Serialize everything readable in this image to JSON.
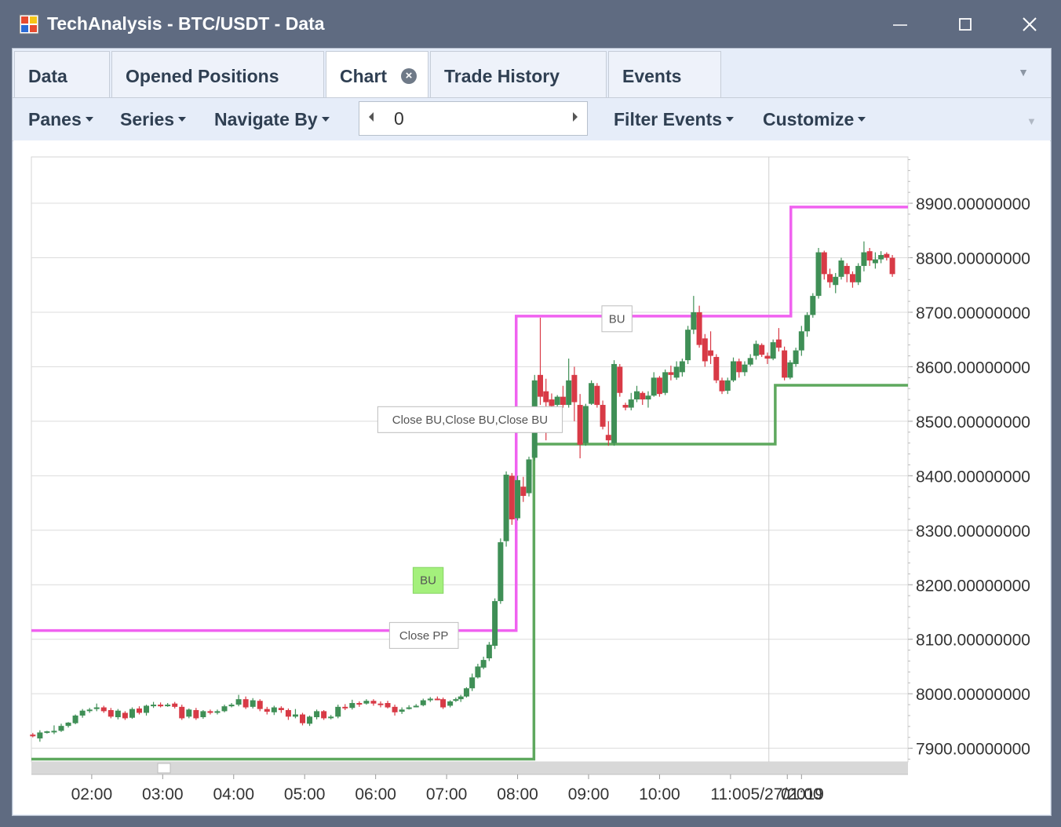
{
  "window": {
    "title": "TechAnalysis - BTC/USDT - Data",
    "controls": {
      "minimize": "—",
      "maximize": "☐",
      "close": "✕"
    }
  },
  "tabs": [
    {
      "label": "Data",
      "active": false,
      "closable": false
    },
    {
      "label": "Opened Positions",
      "active": false,
      "closable": false
    },
    {
      "label": "Chart",
      "active": true,
      "closable": true
    },
    {
      "label": "Trade History",
      "active": false,
      "closable": false
    },
    {
      "label": "Events",
      "active": false,
      "closable": false
    }
  ],
  "toolbar": {
    "panes": "Panes",
    "series": "Series",
    "navigate_by": "Navigate By",
    "navigator_value": "0",
    "filter_events": "Filter Events",
    "customize": "Customize"
  },
  "colors": {
    "up": "#3f8f56",
    "down": "#d83a46",
    "upper_band": "#f062f0",
    "lower_band": "#5ea85e",
    "annotation_green": "#a4f07c"
  },
  "chart_data": {
    "type": "candlestick",
    "y_tick_labels": [
      "8900.00000000",
      "8800.00000000",
      "8700.00000000",
      "8600.00000000",
      "8500.00000000",
      "8400.00000000",
      "8300.00000000",
      "8200.00000000",
      "8100.00000000",
      "8000.00000000",
      "7900.00000000"
    ],
    "y_ticks": [
      8900,
      8800,
      8700,
      8600,
      8500,
      8400,
      8300,
      8200,
      8100,
      8000,
      7900
    ],
    "ylim": [
      7875,
      8985
    ],
    "x_tick_labels": [
      "02:00",
      "03:00",
      "04:00",
      "05:00",
      "06:00",
      "07:00",
      "08:00",
      "09:00",
      "10:00",
      "11:00",
      "5/27/2019",
      "01:00"
    ],
    "x_ticks": [
      1.0,
      2.0,
      3.0,
      4.0,
      5.0,
      6.0,
      7.0,
      8.0,
      9.0,
      10.0,
      10.8,
      11.0
    ],
    "xlim": [
      0.15,
      12.5
    ],
    "date_divider_x": 10.54,
    "grid": true,
    "annotations": [
      {
        "text": "BU",
        "x": 8.4,
        "y": 8688,
        "style": "box"
      },
      {
        "text": "Close BU,Close BU,Close BU",
        "x": 6.33,
        "y": 8503,
        "style": "box"
      },
      {
        "text": "BU",
        "x": 5.74,
        "y": 8208,
        "style": "green"
      },
      {
        "text": "Close PP",
        "x": 5.68,
        "y": 8107,
        "style": "box"
      }
    ],
    "upper_band": {
      "x": [
        0.15,
        6.98,
        6.98,
        10.85,
        10.85,
        12.5
      ],
      "y": [
        8116,
        8116,
        8693,
        8693,
        8893,
        8893
      ]
    },
    "lower_band": {
      "x": [
        0.15,
        7.23,
        7.23,
        10.63,
        10.63,
        12.5
      ],
      "y": [
        7880,
        7880,
        8458,
        8458,
        8566,
        8566
      ]
    },
    "candles": [
      {
        "x": 0.17,
        "o": 7925,
        "h": 7928,
        "l": 7920,
        "c": 7922
      },
      {
        "x": 0.27,
        "o": 7918,
        "h": 7933,
        "l": 7912,
        "c": 7929
      },
      {
        "x": 0.37,
        "o": 7930,
        "h": 7932,
        "l": 7927,
        "c": 7931
      },
      {
        "x": 0.47,
        "o": 7931,
        "h": 7942,
        "l": 7926,
        "c": 7932
      },
      {
        "x": 0.57,
        "o": 7932,
        "h": 7945,
        "l": 7930,
        "c": 7941
      },
      {
        "x": 0.67,
        "o": 7941,
        "h": 7948,
        "l": 7938,
        "c": 7947
      },
      {
        "x": 0.77,
        "o": 7946,
        "h": 7962,
        "l": 7944,
        "c": 7960
      },
      {
        "x": 0.87,
        "o": 7960,
        "h": 7972,
        "l": 7956,
        "c": 7969
      },
      {
        "x": 0.97,
        "o": 7970,
        "h": 7974,
        "l": 7965,
        "c": 7971
      },
      {
        "x": 1.07,
        "o": 7972,
        "h": 7982,
        "l": 7968,
        "c": 7975
      },
      {
        "x": 1.17,
        "o": 7975,
        "h": 7978,
        "l": 7965,
        "c": 7968
      },
      {
        "x": 1.27,
        "o": 7970,
        "h": 7974,
        "l": 7955,
        "c": 7958
      },
      {
        "x": 1.37,
        "o": 7957,
        "h": 7972,
        "l": 7953,
        "c": 7969
      },
      {
        "x": 1.47,
        "o": 7965,
        "h": 7968,
        "l": 7952,
        "c": 7955
      },
      {
        "x": 1.57,
        "o": 7956,
        "h": 7975,
        "l": 7954,
        "c": 7972
      },
      {
        "x": 1.67,
        "o": 7973,
        "h": 7977,
        "l": 7962,
        "c": 7965
      },
      {
        "x": 1.77,
        "o": 7965,
        "h": 7980,
        "l": 7960,
        "c": 7978
      },
      {
        "x": 1.87,
        "o": 7978,
        "h": 7985,
        "l": 7974,
        "c": 7980
      },
      {
        "x": 1.97,
        "o": 7980,
        "h": 7984,
        "l": 7975,
        "c": 7977
      },
      {
        "x": 2.07,
        "o": 7979,
        "h": 7983,
        "l": 7976,
        "c": 7980
      },
      {
        "x": 2.17,
        "o": 7982,
        "h": 7985,
        "l": 7973,
        "c": 7976
      },
      {
        "x": 2.27,
        "o": 7976,
        "h": 7980,
        "l": 7952,
        "c": 7955
      },
      {
        "x": 2.37,
        "o": 7958,
        "h": 7973,
        "l": 7955,
        "c": 7971
      },
      {
        "x": 2.47,
        "o": 7970,
        "h": 7974,
        "l": 7952,
        "c": 7955
      },
      {
        "x": 2.57,
        "o": 7957,
        "h": 7970,
        "l": 7954,
        "c": 7968
      },
      {
        "x": 2.67,
        "o": 7968,
        "h": 7971,
        "l": 7962,
        "c": 7965
      },
      {
        "x": 2.77,
        "o": 7965,
        "h": 7971,
        "l": 7962,
        "c": 7968
      },
      {
        "x": 2.87,
        "o": 7968,
        "h": 7980,
        "l": 7966,
        "c": 7977
      },
      {
        "x": 2.97,
        "o": 7977,
        "h": 7983,
        "l": 7975,
        "c": 7980
      },
      {
        "x": 3.07,
        "o": 7980,
        "h": 7998,
        "l": 7977,
        "c": 7990
      },
      {
        "x": 3.17,
        "o": 7990,
        "h": 7995,
        "l": 7972,
        "c": 7975
      },
      {
        "x": 3.27,
        "o": 7976,
        "h": 7992,
        "l": 7973,
        "c": 7988
      },
      {
        "x": 3.37,
        "o": 7987,
        "h": 7990,
        "l": 7968,
        "c": 7972
      },
      {
        "x": 3.47,
        "o": 7972,
        "h": 7976,
        "l": 7962,
        "c": 7967
      },
      {
        "x": 3.57,
        "o": 7966,
        "h": 7978,
        "l": 7961,
        "c": 7975
      },
      {
        "x": 3.67,
        "o": 7974,
        "h": 7977,
        "l": 7965,
        "c": 7970
      },
      {
        "x": 3.77,
        "o": 7970,
        "h": 7973,
        "l": 7952,
        "c": 7958
      },
      {
        "x": 3.87,
        "o": 7958,
        "h": 7972,
        "l": 7955,
        "c": 7962
      },
      {
        "x": 3.97,
        "o": 7962,
        "h": 7965,
        "l": 7942,
        "c": 7946
      },
      {
        "x": 4.07,
        "o": 7945,
        "h": 7960,
        "l": 7941,
        "c": 7958
      },
      {
        "x": 4.17,
        "o": 7957,
        "h": 7971,
        "l": 7953,
        "c": 7968
      },
      {
        "x": 4.27,
        "o": 7968,
        "h": 7970,
        "l": 7952,
        "c": 7955
      },
      {
        "x": 4.37,
        "o": 7956,
        "h": 7961,
        "l": 7953,
        "c": 7958
      },
      {
        "x": 4.47,
        "o": 7958,
        "h": 7980,
        "l": 7955,
        "c": 7976
      },
      {
        "x": 4.57,
        "o": 7976,
        "h": 7981,
        "l": 7970,
        "c": 7974
      },
      {
        "x": 4.67,
        "o": 7974,
        "h": 7989,
        "l": 7971,
        "c": 7983
      },
      {
        "x": 4.77,
        "o": 7983,
        "h": 7986,
        "l": 7976,
        "c": 7981
      },
      {
        "x": 4.87,
        "o": 7982,
        "h": 7990,
        "l": 7980,
        "c": 7987
      },
      {
        "x": 4.97,
        "o": 7987,
        "h": 7990,
        "l": 7978,
        "c": 7982
      },
      {
        "x": 5.07,
        "o": 7982,
        "h": 7986,
        "l": 7975,
        "c": 7980
      },
      {
        "x": 5.17,
        "o": 7983,
        "h": 7987,
        "l": 7973,
        "c": 7975
      },
      {
        "x": 5.27,
        "o": 7976,
        "h": 7980,
        "l": 7960,
        "c": 7966
      },
      {
        "x": 5.37,
        "o": 7967,
        "h": 7975,
        "l": 7963,
        "c": 7971
      },
      {
        "x": 5.47,
        "o": 7972,
        "h": 7979,
        "l": 7971,
        "c": 7975
      },
      {
        "x": 5.57,
        "o": 7976,
        "h": 7981,
        "l": 7975,
        "c": 7978
      },
      {
        "x": 5.67,
        "o": 7979,
        "h": 7991,
        "l": 7977,
        "c": 7988
      },
      {
        "x": 5.77,
        "o": 7988,
        "h": 7994,
        "l": 7985,
        "c": 7991
      },
      {
        "x": 5.87,
        "o": 7991,
        "h": 7995,
        "l": 7988,
        "c": 7990
      },
      {
        "x": 5.95,
        "o": 7990,
        "h": 7993,
        "l": 7972,
        "c": 7975
      },
      {
        "x": 6.05,
        "o": 7978,
        "h": 7988,
        "l": 7975,
        "c": 7986
      },
      {
        "x": 6.13,
        "o": 7987,
        "h": 7993,
        "l": 7985,
        "c": 7990
      },
      {
        "x": 6.2,
        "o": 7990,
        "h": 7998,
        "l": 7985,
        "c": 7995
      },
      {
        "x": 6.28,
        "o": 7995,
        "h": 8012,
        "l": 7993,
        "c": 8010
      },
      {
        "x": 6.36,
        "o": 8010,
        "h": 8037,
        "l": 8005,
        "c": 8030
      },
      {
        "x": 6.44,
        "o": 8030,
        "h": 8055,
        "l": 8028,
        "c": 8050
      },
      {
        "x": 6.52,
        "o": 8048,
        "h": 8068,
        "l": 8045,
        "c": 8062
      },
      {
        "x": 6.6,
        "o": 8065,
        "h": 8095,
        "l": 8060,
        "c": 8090
      },
      {
        "x": 6.68,
        "o": 8088,
        "h": 8175,
        "l": 8082,
        "c": 8170
      },
      {
        "x": 6.76,
        "o": 8170,
        "h": 8285,
        "l": 8165,
        "c": 8278
      },
      {
        "x": 6.84,
        "o": 8280,
        "h": 8408,
        "l": 8270,
        "c": 8402
      },
      {
        "x": 6.92,
        "o": 8400,
        "h": 8405,
        "l": 8310,
        "c": 8320
      },
      {
        "x": 7.0,
        "o": 8322,
        "h": 8400,
        "l": 8318,
        "c": 8392
      },
      {
        "x": 7.08,
        "o": 8380,
        "h": 8398,
        "l": 8352,
        "c": 8363
      },
      {
        "x": 7.16,
        "o": 8368,
        "h": 8435,
        "l": 8362,
        "c": 8430
      },
      {
        "x": 7.24,
        "o": 8433,
        "h": 8585,
        "l": 8428,
        "c": 8575
      },
      {
        "x": 7.32,
        "o": 8585,
        "h": 8690,
        "l": 8530,
        "c": 8545
      },
      {
        "x": 7.4,
        "o": 8555,
        "h": 8578,
        "l": 8465,
        "c": 8535
      },
      {
        "x": 7.48,
        "o": 8540,
        "h": 8551,
        "l": 8518,
        "c": 8528
      },
      {
        "x": 7.56,
        "o": 8530,
        "h": 8548,
        "l": 8515,
        "c": 8545
      },
      {
        "x": 7.64,
        "o": 8545,
        "h": 8565,
        "l": 8525,
        "c": 8530
      },
      {
        "x": 7.72,
        "o": 8530,
        "h": 8615,
        "l": 8525,
        "c": 8575
      },
      {
        "x": 7.8,
        "o": 8585,
        "h": 8600,
        "l": 8500,
        "c": 8535
      },
      {
        "x": 7.88,
        "o": 8530,
        "h": 8550,
        "l": 8432,
        "c": 8457
      },
      {
        "x": 7.96,
        "o": 8460,
        "h": 8532,
        "l": 8455,
        "c": 8528
      },
      {
        "x": 8.04,
        "o": 8532,
        "h": 8575,
        "l": 8530,
        "c": 8570
      },
      {
        "x": 8.12,
        "o": 8565,
        "h": 8570,
        "l": 8525,
        "c": 8530
      },
      {
        "x": 8.2,
        "o": 8530,
        "h": 8538,
        "l": 8485,
        "c": 8490
      },
      {
        "x": 8.28,
        "o": 8475,
        "h": 8500,
        "l": 8455,
        "c": 8465
      },
      {
        "x": 8.36,
        "o": 8460,
        "h": 8612,
        "l": 8455,
        "c": 8605
      },
      {
        "x": 8.44,
        "o": 8600,
        "h": 8605,
        "l": 8545,
        "c": 8552
      },
      {
        "x": 8.52,
        "o": 8530,
        "h": 8534,
        "l": 8520,
        "c": 8525
      },
      {
        "x": 8.6,
        "o": 8525,
        "h": 8552,
        "l": 8520,
        "c": 8540
      },
      {
        "x": 8.68,
        "o": 8540,
        "h": 8565,
        "l": 8535,
        "c": 8555
      },
      {
        "x": 8.76,
        "o": 8552,
        "h": 8555,
        "l": 8530,
        "c": 8540
      },
      {
        "x": 8.84,
        "o": 8540,
        "h": 8555,
        "l": 8525,
        "c": 8547
      },
      {
        "x": 8.92,
        "o": 8547,
        "h": 8590,
        "l": 8545,
        "c": 8580
      },
      {
        "x": 9.0,
        "o": 8580,
        "h": 8583,
        "l": 8545,
        "c": 8550
      },
      {
        "x": 9.08,
        "o": 8552,
        "h": 8595,
        "l": 8548,
        "c": 8590
      },
      {
        "x": 9.16,
        "o": 8590,
        "h": 8602,
        "l": 8575,
        "c": 8585
      },
      {
        "x": 9.24,
        "o": 8580,
        "h": 8610,
        "l": 8576,
        "c": 8600
      },
      {
        "x": 9.32,
        "o": 8590,
        "h": 8615,
        "l": 8582,
        "c": 8610
      },
      {
        "x": 9.4,
        "o": 8612,
        "h": 8675,
        "l": 8605,
        "c": 8668
      },
      {
        "x": 9.48,
        "o": 8668,
        "h": 8730,
        "l": 8660,
        "c": 8700
      },
      {
        "x": 9.56,
        "o": 8700,
        "h": 8712,
        "l": 8635,
        "c": 8640
      },
      {
        "x": 9.64,
        "o": 8652,
        "h": 8660,
        "l": 8600,
        "c": 8610
      },
      {
        "x": 9.72,
        "o": 8630,
        "h": 8665,
        "l": 8605,
        "c": 8620
      },
      {
        "x": 9.8,
        "o": 8618,
        "h": 8623,
        "l": 8570,
        "c": 8575
      },
      {
        "x": 9.88,
        "o": 8575,
        "h": 8580,
        "l": 8550,
        "c": 8555
      },
      {
        "x": 9.96,
        "o": 8556,
        "h": 8580,
        "l": 8550,
        "c": 8575
      },
      {
        "x": 10.04,
        "o": 8575,
        "h": 8617,
        "l": 8572,
        "c": 8610
      },
      {
        "x": 10.12,
        "o": 8610,
        "h": 8615,
        "l": 8580,
        "c": 8590
      },
      {
        "x": 10.2,
        "o": 8590,
        "h": 8610,
        "l": 8583,
        "c": 8604
      },
      {
        "x": 10.28,
        "o": 8604,
        "h": 8623,
        "l": 8601,
        "c": 8616
      },
      {
        "x": 10.36,
        "o": 8620,
        "h": 8648,
        "l": 8613,
        "c": 8642
      },
      {
        "x": 10.44,
        "o": 8640,
        "h": 8643,
        "l": 8618,
        "c": 8622
      },
      {
        "x": 10.52,
        "o": 8620,
        "h": 8626,
        "l": 8605,
        "c": 8615
      },
      {
        "x": 10.6,
        "o": 8615,
        "h": 8650,
        "l": 8612,
        "c": 8645
      },
      {
        "x": 10.68,
        "o": 8650,
        "h": 8671,
        "l": 8628,
        "c": 8635
      },
      {
        "x": 10.76,
        "o": 8630,
        "h": 8637,
        "l": 8575,
        "c": 8580
      },
      {
        "x": 10.84,
        "o": 8580,
        "h": 8612,
        "l": 8577,
        "c": 8608
      },
      {
        "x": 10.92,
        "o": 8605,
        "h": 8635,
        "l": 8600,
        "c": 8630
      },
      {
        "x": 11.0,
        "o": 8630,
        "h": 8675,
        "l": 8620,
        "c": 8665
      },
      {
        "x": 11.08,
        "o": 8665,
        "h": 8700,
        "l": 8655,
        "c": 8695
      },
      {
        "x": 11.16,
        "o": 8695,
        "h": 8735,
        "l": 8690,
        "c": 8730
      },
      {
        "x": 11.24,
        "o": 8730,
        "h": 8818,
        "l": 8725,
        "c": 8810
      },
      {
        "x": 11.32,
        "o": 8810,
        "h": 8813,
        "l": 8760,
        "c": 8770
      },
      {
        "x": 11.4,
        "o": 8770,
        "h": 8780,
        "l": 8745,
        "c": 8755
      },
      {
        "x": 11.48,
        "o": 8750,
        "h": 8772,
        "l": 8735,
        "c": 8765
      },
      {
        "x": 11.56,
        "o": 8765,
        "h": 8800,
        "l": 8760,
        "c": 8795
      },
      {
        "x": 11.64,
        "o": 8785,
        "h": 8790,
        "l": 8755,
        "c": 8770
      },
      {
        "x": 11.72,
        "o": 8770,
        "h": 8775,
        "l": 8745,
        "c": 8755
      },
      {
        "x": 11.8,
        "o": 8755,
        "h": 8790,
        "l": 8750,
        "c": 8785
      },
      {
        "x": 11.88,
        "o": 8785,
        "h": 8830,
        "l": 8775,
        "c": 8810
      },
      {
        "x": 11.96,
        "o": 8812,
        "h": 8818,
        "l": 8785,
        "c": 8795
      },
      {
        "x": 12.04,
        "o": 8790,
        "h": 8810,
        "l": 8780,
        "c": 8797
      },
      {
        "x": 12.12,
        "o": 8797,
        "h": 8812,
        "l": 8790,
        "c": 8805
      },
      {
        "x": 12.2,
        "o": 8807,
        "h": 8810,
        "l": 8795,
        "c": 8800
      },
      {
        "x": 12.28,
        "o": 8800,
        "h": 8805,
        "l": 8765,
        "c": 8770
      }
    ]
  }
}
